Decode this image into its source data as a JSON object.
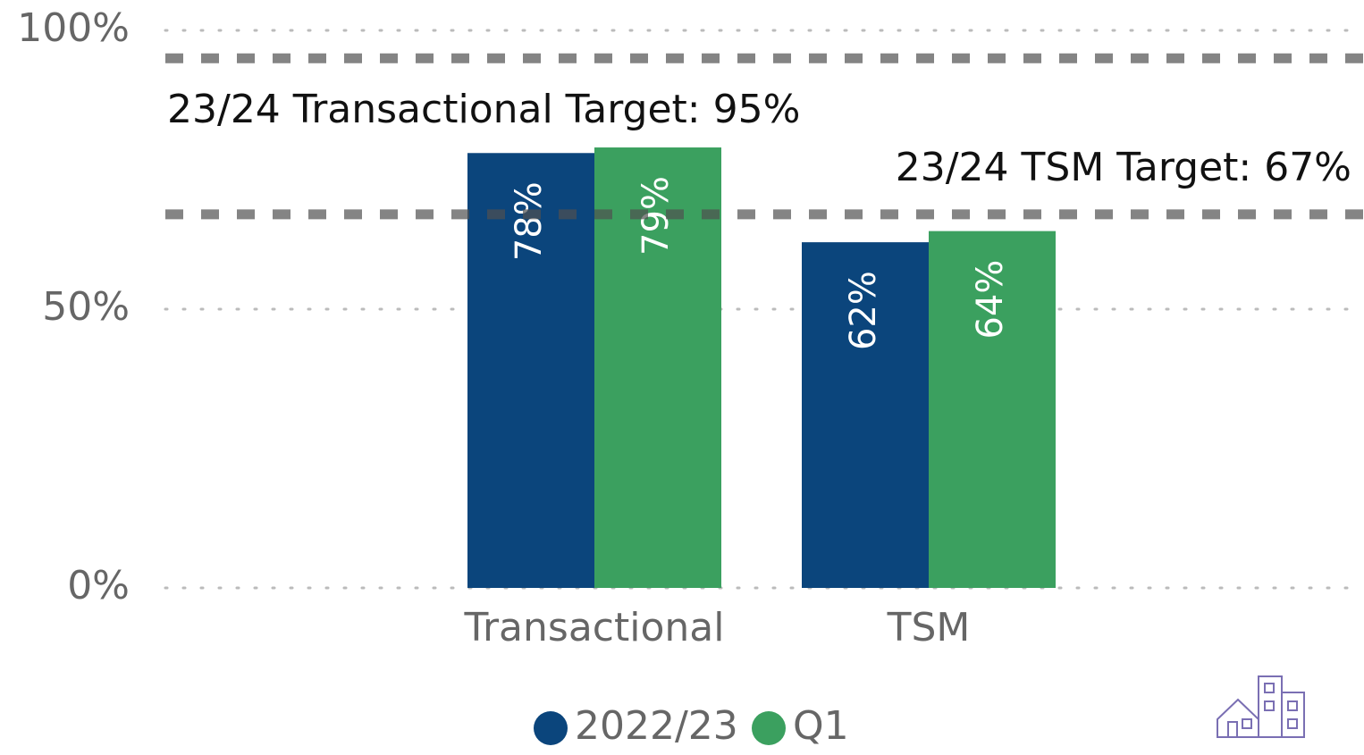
{
  "chart_data": {
    "type": "bar",
    "categories": [
      "Transactional",
      "TSM"
    ],
    "series": [
      {
        "name": "2022/23",
        "color": "#0b457c",
        "values": [
          78,
          62
        ],
        "value_labels": [
          "78%",
          "62%"
        ]
      },
      {
        "name": "Q1",
        "color": "#3ba05f",
        "values": [
          79,
          64
        ],
        "value_labels": [
          "79%",
          "64%"
        ]
      }
    ],
    "ylim": [
      0,
      100
    ],
    "yticks": [
      {
        "value": 0,
        "label": "0%"
      },
      {
        "value": 50,
        "label": "50%"
      },
      {
        "value": 100,
        "label": "100%"
      }
    ],
    "grid": true,
    "reference_lines": [
      {
        "value": 95,
        "label": "23/24 Transactional Target: 95%"
      },
      {
        "value": 67,
        "label": "23/24 TSM Target: 67%"
      }
    ],
    "legend": "bottom"
  }
}
